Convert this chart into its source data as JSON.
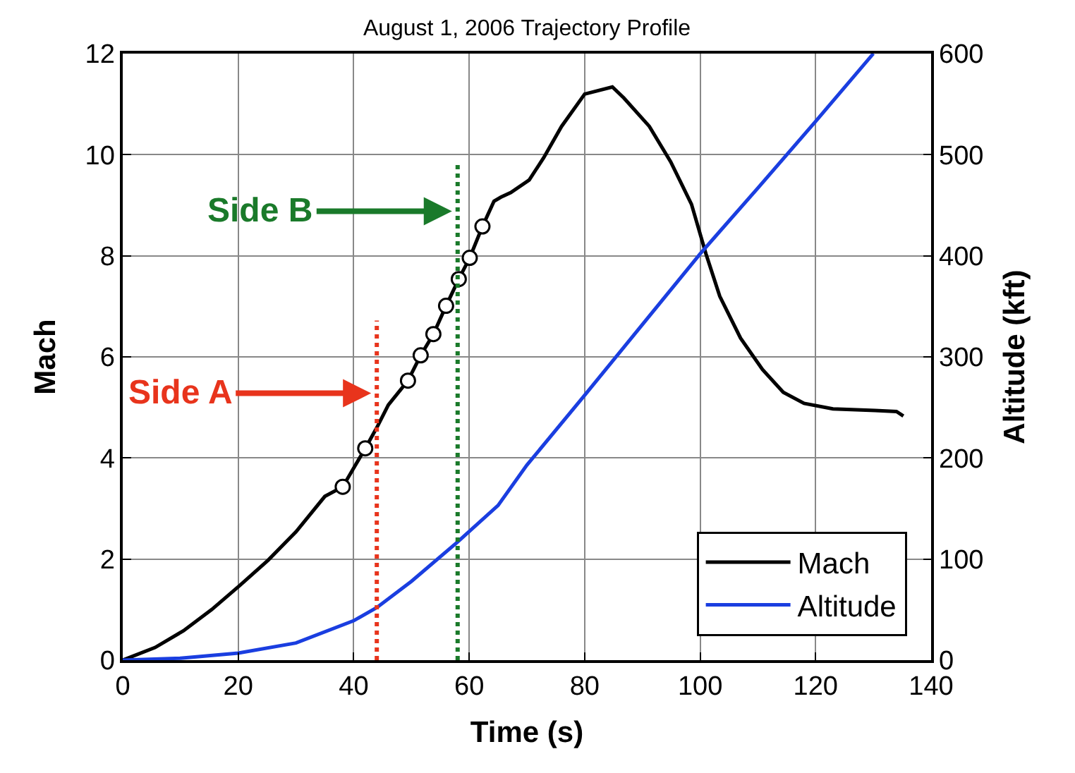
{
  "chart_data": {
    "type": "line",
    "title": "August 1, 2006 Trajectory Profile",
    "xlabel": "Time (s)",
    "ylabel": "Mach",
    "y2label": "Altitude (kft)",
    "series": [
      {
        "name": "Mach",
        "color": "#000000",
        "x": [
          0,
          5.6,
          10.5,
          15.4,
          20.3,
          25.2,
          30,
          35,
          38.1,
          42,
          44,
          46,
          49.4,
          51.6,
          53.8,
          56,
          58.2,
          60.1,
          62.3,
          64.3,
          65.5,
          67.2,
          70.4,
          72.9,
          76,
          80,
          84.8,
          86.8,
          91.2,
          94.9,
          98.5,
          101,
          103.4,
          107,
          110.8,
          114.4,
          118,
          123,
          130.3,
          134,
          135.2
        ],
        "values": [
          0,
          0.25,
          0.58,
          1.0,
          1.48,
          1.98,
          2.54,
          3.24,
          3.43,
          4.19,
          4.6,
          5.05,
          5.53,
          6.03,
          6.45,
          7.01,
          7.54,
          7.96,
          8.58,
          9.08,
          9.16,
          9.25,
          9.5,
          9.94,
          10.56,
          11.2,
          11.34,
          11.12,
          10.56,
          9.86,
          9.02,
          8.04,
          7.2,
          6.37,
          5.75,
          5.3,
          5.08,
          4.97,
          4.94,
          4.92,
          4.83
        ]
      },
      {
        "name": "Altitude",
        "color": "#1a3ee0",
        "axis": "y2",
        "x": [
          0,
          10,
          20,
          30,
          40,
          44,
          50,
          58,
          65,
          70,
          80,
          90,
          100,
          110,
          120,
          130
        ],
        "values": [
          0,
          2,
          7,
          17,
          39,
          52,
          78,
          117,
          153,
          193,
          262,
          332,
          402,
          467,
          533,
          600
        ]
      },
      {
        "type": "scatter",
        "color": "#000000",
        "marker": "circle",
        "x": [
          38.1,
          42,
          49.4,
          51.6,
          53.8,
          56,
          58.2,
          60.1,
          62.3
        ],
        "values": [
          3.43,
          4.19,
          5.53,
          6.03,
          6.45,
          7.01,
          7.54,
          7.96,
          8.58
        ]
      }
    ],
    "xlim": [
      0,
      140
    ],
    "xticks": [
      0,
      20,
      40,
      60,
      80,
      100,
      120,
      140
    ],
    "ylim": [
      0,
      12
    ],
    "yticks": [
      0,
      2,
      4,
      6,
      8,
      10,
      12
    ],
    "y2lim": [
      0,
      600
    ],
    "y2ticks": [
      0,
      100,
      200,
      300,
      400,
      500,
      600
    ],
    "ref_lines": [
      {
        "axis": "x",
        "value": 44,
        "label": "Side A",
        "color": "#e8341c",
        "line_style": "dotted"
      },
      {
        "axis": "x",
        "value": 58,
        "label": "Side B",
        "color": "#1a7a2a",
        "line_style": "dotted"
      }
    ],
    "grid": true,
    "legend": "bottom right",
    "marker": "none"
  }
}
